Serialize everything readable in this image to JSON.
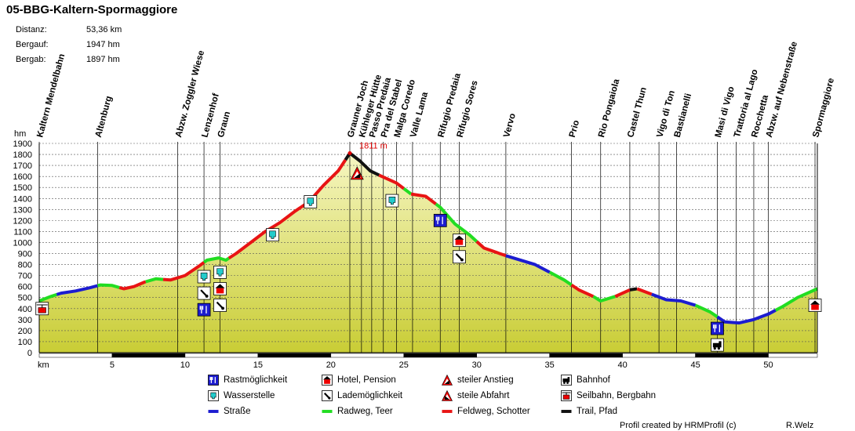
{
  "header": {
    "title": "05-BBG-Kaltern-Spormaggiore",
    "stats": [
      {
        "label": "Distanz:",
        "value": "53,36 km"
      },
      {
        "label": "Bergauf:",
        "value": "1947 hm"
      },
      {
        "label": "Bergab:",
        "value": "1897 hm"
      }
    ]
  },
  "chart_data": {
    "type": "area",
    "title": "05-BBG-Kaltern-Spormaggiore",
    "xlabel": "km",
    "ylabel": "hm",
    "xlim": [
      0,
      53.36
    ],
    "ylim": [
      0,
      1900
    ],
    "x_ticks": [
      5,
      10,
      15,
      20,
      25,
      30,
      35,
      40,
      45,
      50
    ],
    "y_ticks": [
      0,
      100,
      200,
      300,
      400,
      500,
      600,
      700,
      800,
      900,
      1000,
      1100,
      1200,
      1300,
      1400,
      1500,
      1600,
      1700,
      1800,
      1900
    ],
    "grid": true,
    "max_label": "1811 m",
    "max_point": {
      "km": 21.3,
      "hm": 1811
    },
    "series": [
      {
        "name": "Höhenprofil",
        "points": [
          [
            0,
            470
          ],
          [
            0.8,
            510
          ],
          [
            1.5,
            540
          ],
          [
            2.5,
            560
          ],
          [
            3.5,
            590
          ],
          [
            4.2,
            615
          ],
          [
            5,
            610
          ],
          [
            5.8,
            580
          ],
          [
            6.5,
            600
          ],
          [
            7.2,
            640
          ],
          [
            8,
            670
          ],
          [
            9,
            660
          ],
          [
            10,
            700
          ],
          [
            11,
            790
          ],
          [
            11.5,
            840
          ],
          [
            12.3,
            860
          ],
          [
            12.8,
            840
          ],
          [
            13.5,
            900
          ],
          [
            14.5,
            1000
          ],
          [
            15.5,
            1100
          ],
          [
            16.5,
            1180
          ],
          [
            17.5,
            1280
          ],
          [
            18.5,
            1370
          ],
          [
            19.5,
            1520
          ],
          [
            20.5,
            1650
          ],
          [
            21.3,
            1811
          ],
          [
            22,
            1740
          ],
          [
            22.7,
            1650
          ],
          [
            23.5,
            1600
          ],
          [
            24.5,
            1540
          ],
          [
            25.5,
            1440
          ],
          [
            26.5,
            1420
          ],
          [
            27.5,
            1320
          ],
          [
            28.5,
            1170
          ],
          [
            29.5,
            1070
          ],
          [
            30.5,
            950
          ],
          [
            32,
            880
          ],
          [
            34,
            800
          ],
          [
            36,
            660
          ],
          [
            37,
            570
          ],
          [
            38,
            510
          ],
          [
            38.5,
            470
          ],
          [
            39.5,
            510
          ],
          [
            40.5,
            570
          ],
          [
            41,
            580
          ],
          [
            42,
            530
          ],
          [
            43,
            480
          ],
          [
            44,
            470
          ],
          [
            45,
            430
          ],
          [
            46,
            370
          ],
          [
            47,
            280
          ],
          [
            48,
            270
          ],
          [
            49,
            300
          ],
          [
            50,
            350
          ],
          [
            51,
            420
          ],
          [
            52,
            500
          ],
          [
            53.36,
            580
          ]
        ]
      }
    ],
    "surface_segments": [
      {
        "from": 0,
        "to": 1.2,
        "surface": "Radweg, Teer"
      },
      {
        "from": 1.2,
        "to": 4,
        "surface": "Straße"
      },
      {
        "from": 4,
        "to": 5.5,
        "surface": "Radweg, Teer"
      },
      {
        "from": 5.5,
        "to": 7.3,
        "surface": "Feldweg, Schotter"
      },
      {
        "from": 7.3,
        "to": 8.5,
        "surface": "Radweg, Teer"
      },
      {
        "from": 8.5,
        "to": 11.3,
        "surface": "Feldweg, Schotter"
      },
      {
        "from": 11.3,
        "to": 13,
        "surface": "Radweg, Teer"
      },
      {
        "from": 13,
        "to": 21,
        "surface": "Feldweg, Schotter"
      },
      {
        "from": 21,
        "to": 23.3,
        "surface": "Trail, Pfad"
      },
      {
        "from": 23.3,
        "to": 25,
        "surface": "Feldweg, Schotter"
      },
      {
        "from": 25,
        "to": 25.5,
        "surface": "Radweg, Teer"
      },
      {
        "from": 25.5,
        "to": 27.2,
        "surface": "Feldweg, Schotter"
      },
      {
        "from": 27.2,
        "to": 30,
        "surface": "Radweg, Teer"
      },
      {
        "from": 30,
        "to": 32,
        "surface": "Feldweg, Schotter"
      },
      {
        "from": 32,
        "to": 35,
        "surface": "Straße"
      },
      {
        "from": 35,
        "to": 36.5,
        "surface": "Radweg, Teer"
      },
      {
        "from": 36.5,
        "to": 38,
        "surface": "Feldweg, Schotter"
      },
      {
        "from": 38,
        "to": 39.5,
        "surface": "Radweg, Teer"
      },
      {
        "from": 39.5,
        "to": 40.5,
        "surface": "Feldweg, Schotter"
      },
      {
        "from": 40.5,
        "to": 41,
        "surface": "Trail, Pfad"
      },
      {
        "from": 41,
        "to": 42,
        "surface": "Feldweg, Schotter"
      },
      {
        "from": 42,
        "to": 45,
        "surface": "Straße"
      },
      {
        "from": 45,
        "to": 46.5,
        "surface": "Radweg, Teer"
      },
      {
        "from": 46.5,
        "to": 50.5,
        "surface": "Straße"
      },
      {
        "from": 50.5,
        "to": 53.36,
        "surface": "Radweg, Teer"
      }
    ],
    "waypoints": [
      {
        "name": "Kaltern Mendelbahn",
        "km": 0
      },
      {
        "name": "Altenburg",
        "km": 4
      },
      {
        "name": "Abzw. Zoggler Wiese",
        "km": 9.5
      },
      {
        "name": "Lenzenhof",
        "km": 11.3
      },
      {
        "name": "Graun",
        "km": 12.4
      },
      {
        "name": "Grauner Joch",
        "km": 21.3
      },
      {
        "name": "Kühleger Hütte",
        "km": 22.1
      },
      {
        "name": "Passo Predaia",
        "km": 22.8
      },
      {
        "name": "Pra del Stabel",
        "km": 23.6
      },
      {
        "name": "Malga Coredo",
        "km": 24.5
      },
      {
        "name": "Valle Lama",
        "km": 25.6
      },
      {
        "name": "Rifugio Predaia",
        "km": 27.5
      },
      {
        "name": "Rifugio Sores",
        "km": 28.8
      },
      {
        "name": "Vervo",
        "km": 32
      },
      {
        "name": "Prio",
        "km": 36.5
      },
      {
        "name": "Rio Pongaiola",
        "km": 38.5
      },
      {
        "name": "Castel Thun",
        "km": 40.5
      },
      {
        "name": "Vigo di Ton",
        "km": 42.5
      },
      {
        "name": "Bastianelli",
        "km": 43.7
      },
      {
        "name": "Masi di Vigo",
        "km": 46.5
      },
      {
        "name": "Trattoria al Lago",
        "km": 47.8
      },
      {
        "name": "Rocchetta",
        "km": 49
      },
      {
        "name": "Abzw. auf Nebenstraße",
        "km": 50
      },
      {
        "name": "Spormaggiore",
        "km": 53.2
      }
    ],
    "pois": [
      {
        "type": "seilbahn",
        "km": 0.2,
        "hm": 400
      },
      {
        "type": "wasser",
        "km": 11.3,
        "hm": 690
      },
      {
        "type": "laden",
        "km": 11.3,
        "hm": 540
      },
      {
        "type": "rast",
        "km": 11.3,
        "hm": 390
      },
      {
        "type": "wasser",
        "km": 12.4,
        "hm": 730
      },
      {
        "type": "hotel",
        "km": 12.4,
        "hm": 580
      },
      {
        "type": "laden",
        "km": 12.4,
        "hm": 430
      },
      {
        "type": "wasser",
        "km": 16,
        "hm": 1070
      },
      {
        "type": "wasser",
        "km": 18.6,
        "hm": 1370
      },
      {
        "type": "anstieg",
        "km": 21.8,
        "hm": 1630
      },
      {
        "type": "wasser",
        "km": 24.2,
        "hm": 1380
      },
      {
        "type": "rast",
        "km": 27.5,
        "hm": 1200
      },
      {
        "type": "hotel",
        "km": 28.8,
        "hm": 1020
      },
      {
        "type": "laden",
        "km": 28.8,
        "hm": 870
      },
      {
        "type": "rast",
        "km": 46.5,
        "hm": 220
      },
      {
        "type": "bahnhof",
        "km": 46.5,
        "hm": 70
      },
      {
        "type": "hotel",
        "km": 53.2,
        "hm": 430
      }
    ]
  },
  "legend": [
    {
      "icon": "rast",
      "label": "Rastmöglichkeit"
    },
    {
      "icon": "hotel",
      "label": "Hotel, Pension"
    },
    {
      "icon": "anstieg",
      "label": "steiler Anstieg"
    },
    {
      "icon": "bahnhof",
      "label": "Bahnhof"
    },
    {
      "icon": "wasser",
      "label": "Wasserstelle"
    },
    {
      "icon": "laden",
      "label": "Lademöglichkeit"
    },
    {
      "icon": "abfahrt",
      "label": "steile Abfahrt"
    },
    {
      "icon": "seilbahn",
      "label": "Seilbahn, Bergbahn"
    },
    {
      "icon": "strasse",
      "label": "Straße"
    },
    {
      "icon": "radweg",
      "label": "Radweg, Teer"
    },
    {
      "icon": "feldweg",
      "label": "Feldweg, Schotter"
    },
    {
      "icon": "trail",
      "label": "Trail, Pfad"
    }
  ],
  "colors": {
    "fill_top": "#f6f6c2",
    "fill_bottom": "#c9cd35",
    "Straße": "#1c1cd0",
    "Radweg, Teer": "#22dd22",
    "Feldweg, Schotter": "#e81414",
    "Trail, Pfad": "#111111",
    "max_label": "#e00000"
  },
  "footer": {
    "credit": "Profil created by HRMProfil (c)",
    "author": "R.Welz"
  }
}
